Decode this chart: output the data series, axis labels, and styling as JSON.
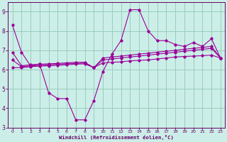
{
  "x_vals": [
    0,
    1,
    2,
    3,
    4,
    5,
    6,
    7,
    8,
    9,
    10,
    11,
    12,
    13,
    14,
    15,
    16,
    17,
    18,
    19,
    20,
    21,
    22,
    23
  ],
  "line1_y": [
    8.3,
    6.9,
    6.2,
    6.3,
    4.8,
    4.5,
    4.5,
    3.4,
    3.4,
    4.4,
    5.9,
    6.8,
    7.5,
    9.1,
    9.1,
    8.0,
    7.5,
    7.5,
    7.3,
    7.2,
    7.4,
    7.2,
    7.6,
    6.6
  ],
  "line2_y": [
    6.9,
    6.2,
    6.25,
    6.28,
    6.3,
    6.32,
    6.35,
    6.38,
    6.38,
    6.1,
    6.6,
    6.65,
    6.7,
    6.75,
    6.8,
    6.85,
    6.9,
    6.95,
    7.0,
    7.05,
    7.1,
    7.15,
    7.2,
    6.6
  ],
  "line3_y": [
    6.5,
    6.15,
    6.2,
    6.22,
    6.25,
    6.28,
    6.3,
    6.32,
    6.34,
    6.1,
    6.5,
    6.55,
    6.6,
    6.65,
    6.7,
    6.75,
    6.8,
    6.85,
    6.9,
    6.95,
    7.0,
    7.05,
    7.1,
    6.6
  ],
  "line4_y": [
    6.1,
    6.1,
    6.15,
    6.18,
    6.2,
    6.22,
    6.25,
    6.28,
    6.3,
    6.1,
    6.35,
    6.38,
    6.4,
    6.45,
    6.48,
    6.5,
    6.55,
    6.6,
    6.65,
    6.68,
    6.7,
    6.72,
    6.75,
    6.6
  ],
  "color": "#990099",
  "bg_color": "#cceee8",
  "grid_color": "#99ccbb",
  "xlabel": "Windchill (Refroidissement éolien,°C)",
  "ylim": [
    3.0,
    9.5
  ],
  "xlim": [
    -0.5,
    23.5
  ],
  "yticks": [
    3,
    4,
    5,
    6,
    7,
    8,
    9
  ],
  "xticks": [
    0,
    1,
    2,
    3,
    4,
    5,
    6,
    7,
    8,
    9,
    10,
    11,
    12,
    13,
    14,
    15,
    16,
    17,
    18,
    19,
    20,
    21,
    22,
    23
  ]
}
